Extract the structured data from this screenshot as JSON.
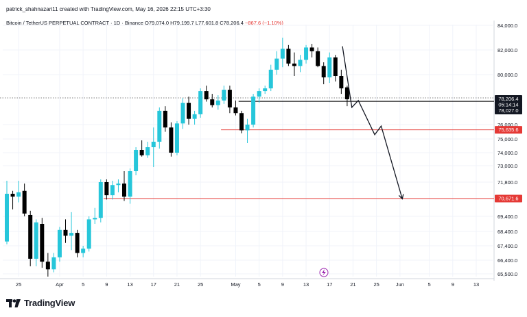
{
  "header": {
    "credit": "patrick_shahnazari11 created with TradingView.com, May 16, 2026 22:15 UTC+3:30",
    "legend_main": "Bitcoin / TetherUS PERPETUAL CONTRACT · 1D · Binance  O79,074.0  H79,199.7  L77,601.8  C78,206.4",
    "legend_change": "−867.6 (−1.10%)"
  },
  "footer": {
    "brand": "TradingView",
    "logo_icon": "tradingview-logo-icon"
  },
  "colors": {
    "up": "#26c6da",
    "down": "#000000",
    "red_line": "#e53935",
    "black_line": "#000000",
    "bg": "#ffffff",
    "grid": "#f0f3fa"
  },
  "chart_data": {
    "type": "candlestick",
    "symbol": "Bitcoin / TetherUS PERPETUAL CONTRACT",
    "interval": "1D",
    "exchange": "Binance",
    "ohlc_last": {
      "open": 79074.0,
      "high": 79199.7,
      "low": 77601.8,
      "close": 78206.4
    },
    "yticks": [
      "84,000.0",
      "82,000.0",
      "80,000.0",
      "76,000.0",
      "75,000.0",
      "74,000.0",
      "73,000.0",
      "71,800.0",
      "69,400.0",
      "68,400.0",
      "67,400.0",
      "66,400.0",
      "65,500.0"
    ],
    "xticks": [
      "25",
      "Apr",
      "5",
      "9",
      "13",
      "17",
      "21",
      "25",
      "May",
      "5",
      "9",
      "13",
      "17",
      "21",
      "25",
      "Jun",
      "5",
      "9",
      "13"
    ],
    "price_tags": {
      "current": "78,206.4",
      "countdown": "05:14:14",
      "low_tag": "78,027.0",
      "level_mid": "75,635.6",
      "level_low": "70,671.6"
    },
    "levels": [
      {
        "name": "support-black",
        "value": 78027.0,
        "color": "#000000"
      },
      {
        "name": "level-mid",
        "value": 75635.6,
        "color": "#e53935"
      },
      {
        "name": "level-low",
        "value": 70671.6,
        "color": "#e53935"
      }
    ],
    "candles": [
      {
        "o": 67700,
        "h": 71900,
        "l": 67500,
        "c": 71000
      },
      {
        "o": 71000,
        "h": 71200,
        "l": 69900,
        "c": 70800
      },
      {
        "o": 70800,
        "h": 71900,
        "l": 70400,
        "c": 71100
      },
      {
        "o": 71200,
        "h": 71700,
        "l": 69400,
        "c": 69600
      },
      {
        "o": 69500,
        "h": 69800,
        "l": 66000,
        "c": 66500
      },
      {
        "o": 66500,
        "h": 69200,
        "l": 66000,
        "c": 69000
      },
      {
        "o": 68900,
        "h": 69300,
        "l": 65900,
        "c": 66300
      },
      {
        "o": 66300,
        "h": 66900,
        "l": 65300,
        "c": 65800
      },
      {
        "o": 65800,
        "h": 66900,
        "l": 65600,
        "c": 66600
      },
      {
        "o": 66600,
        "h": 68700,
        "l": 66300,
        "c": 68500
      },
      {
        "o": 68500,
        "h": 69200,
        "l": 67600,
        "c": 68100
      },
      {
        "o": 68100,
        "h": 69700,
        "l": 67100,
        "c": 68300
      },
      {
        "o": 68300,
        "h": 68500,
        "l": 66600,
        "c": 66900
      },
      {
        "o": 66900,
        "h": 67400,
        "l": 66600,
        "c": 67200
      },
      {
        "o": 67200,
        "h": 69400,
        "l": 67000,
        "c": 69200
      },
      {
        "o": 69200,
        "h": 70000,
        "l": 68900,
        "c": 69300
      },
      {
        "o": 69300,
        "h": 72000,
        "l": 69000,
        "c": 71800
      },
      {
        "o": 71800,
        "h": 72000,
        "l": 70600,
        "c": 70900
      },
      {
        "o": 70900,
        "h": 71900,
        "l": 70600,
        "c": 71600
      },
      {
        "o": 71600,
        "h": 72000,
        "l": 71100,
        "c": 71700
      },
      {
        "o": 71700,
        "h": 72600,
        "l": 70500,
        "c": 70800
      },
      {
        "o": 70800,
        "h": 72800,
        "l": 70300,
        "c": 72600
      },
      {
        "o": 72600,
        "h": 74400,
        "l": 72300,
        "c": 74200
      },
      {
        "o": 74200,
        "h": 74900,
        "l": 73700,
        "c": 73800
      },
      {
        "o": 73800,
        "h": 74800,
        "l": 73600,
        "c": 74400
      },
      {
        "o": 74400,
        "h": 75800,
        "l": 72900,
        "c": 74800
      },
      {
        "o": 74800,
        "h": 77500,
        "l": 74300,
        "c": 77200
      },
      {
        "o": 77200,
        "h": 77600,
        "l": 75500,
        "c": 75800
      },
      {
        "o": 75800,
        "h": 76200,
        "l": 73700,
        "c": 74000
      },
      {
        "o": 74000,
        "h": 76300,
        "l": 73800,
        "c": 76100
      },
      {
        "o": 76100,
        "h": 78300,
        "l": 75700,
        "c": 77900
      },
      {
        "o": 77900,
        "h": 78400,
        "l": 76000,
        "c": 76500
      },
      {
        "o": 76500,
        "h": 77200,
        "l": 76000,
        "c": 76900
      },
      {
        "o": 76900,
        "h": 79000,
        "l": 76600,
        "c": 78800
      },
      {
        "o": 78800,
        "h": 79200,
        "l": 78000,
        "c": 78200
      },
      {
        "o": 78200,
        "h": 78600,
        "l": 77500,
        "c": 77700
      },
      {
        "o": 77700,
        "h": 78500,
        "l": 77300,
        "c": 78100
      },
      {
        "o": 78100,
        "h": 79200,
        "l": 77800,
        "c": 78900
      },
      {
        "o": 78900,
        "h": 79200,
        "l": 77000,
        "c": 77500
      },
      {
        "o": 77500,
        "h": 78100,
        "l": 76800,
        "c": 77000
      },
      {
        "o": 77000,
        "h": 77200,
        "l": 75400,
        "c": 75600
      },
      {
        "o": 75600,
        "h": 76500,
        "l": 74700,
        "c": 76000
      },
      {
        "o": 76000,
        "h": 78600,
        "l": 75800,
        "c": 78400
      },
      {
        "o": 78400,
        "h": 79000,
        "l": 77900,
        "c": 78800
      },
      {
        "o": 78800,
        "h": 79200,
        "l": 78600,
        "c": 79000
      },
      {
        "o": 79000,
        "h": 80800,
        "l": 78800,
        "c": 80400
      },
      {
        "o": 80400,
        "h": 81900,
        "l": 80000,
        "c": 81300
      },
      {
        "o": 81300,
        "h": 83000,
        "l": 80600,
        "c": 82100
      },
      {
        "o": 82100,
        "h": 82400,
        "l": 80700,
        "c": 80900
      },
      {
        "o": 80900,
        "h": 81800,
        "l": 79900,
        "c": 80700
      },
      {
        "o": 80700,
        "h": 81600,
        "l": 80200,
        "c": 81200
      },
      {
        "o": 81200,
        "h": 82400,
        "l": 80900,
        "c": 82200
      },
      {
        "o": 82200,
        "h": 82500,
        "l": 81400,
        "c": 81900
      },
      {
        "o": 81900,
        "h": 82200,
        "l": 80600,
        "c": 80700
      },
      {
        "o": 80700,
        "h": 81000,
        "l": 79300,
        "c": 79800
      },
      {
        "o": 79800,
        "h": 81800,
        "l": 79400,
        "c": 81400
      },
      {
        "o": 81400,
        "h": 81600,
        "l": 79500,
        "c": 79900
      },
      {
        "o": 79900,
        "h": 80400,
        "l": 78600,
        "c": 79000
      },
      {
        "o": 79074,
        "h": 79200,
        "l": 77602,
        "c": 78206
      }
    ],
    "projection": [
      {
        "day": 57.2,
        "price": 82300
      },
      {
        "day": 58.8,
        "price": 77500
      },
      {
        "day": 59.9,
        "price": 78100
      },
      {
        "day": 62.7,
        "price": 75300
      },
      {
        "day": 63.8,
        "price": 75900
      },
      {
        "day": 67.4,
        "price": 70650
      }
    ]
  }
}
